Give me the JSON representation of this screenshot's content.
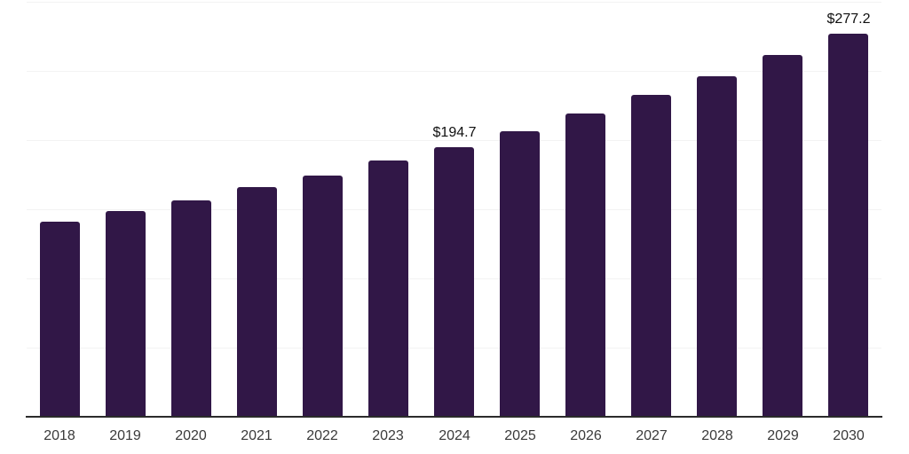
{
  "chart_data": {
    "type": "bar",
    "title": "",
    "xlabel": "",
    "ylabel": "",
    "categories": [
      "2018",
      "2019",
      "2020",
      "2021",
      "2022",
      "2023",
      "2024",
      "2025",
      "2026",
      "2027",
      "2028",
      "2029",
      "2030"
    ],
    "values": [
      141.0,
      148.9,
      156.6,
      166.2,
      174.6,
      185.3,
      194.7,
      206.4,
      219.2,
      232.5,
      246.3,
      261.7,
      277.2
    ],
    "data_labels": [
      null,
      null,
      null,
      null,
      null,
      null,
      "$194.7",
      null,
      null,
      null,
      null,
      null,
      "$277.2"
    ],
    "ylim": [
      0,
      300
    ],
    "y_gridlines": [
      50,
      100,
      150,
      200,
      250,
      300
    ],
    "y_axis_labels_visible": false,
    "grid": true,
    "legend": null,
    "colors": {
      "bar": "#311747",
      "gridline": "#f3f3f3",
      "axis_line": "#2b2b2b",
      "tick_label": "#3a3a3a",
      "data_label": "#101010",
      "background": "#ffffff"
    }
  }
}
